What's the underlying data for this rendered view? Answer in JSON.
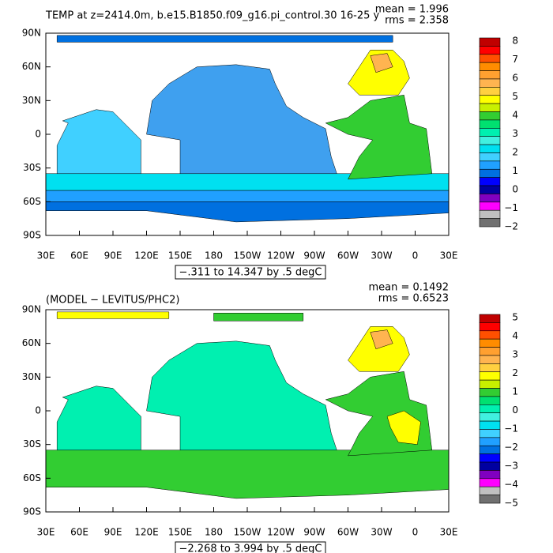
{
  "panels": [
    {
      "title": "TEMP at z=2414.0m, b.e15.B1850.f09_g16.pi_control.30 16-25 y",
      "mean": "mean = 1.996",
      "rms": "rms = 2.358",
      "range": "−.311 to 14.347 by .5 degC",
      "colorbar_labels": [
        "8",
        "7",
        "6",
        "5",
        "4",
        "3",
        "2",
        "1",
        "0",
        "−1",
        "−2"
      ]
    },
    {
      "title": "(MODEL − LEVITUS/PHC2)",
      "mean": "mean = 0.1492",
      "rms": "rms = 0.6523",
      "range": "−2.268 to 3.994 by .5 degC",
      "colorbar_labels": [
        "5",
        "4",
        "3",
        "2",
        "1",
        "0",
        "−1",
        "−2",
        "−3",
        "−4",
        "−5"
      ]
    }
  ],
  "x_labels": [
    "30E",
    "60E",
    "90E",
    "120E",
    "150E",
    "180",
    "150W",
    "120W",
    "90W",
    "60W",
    "30W",
    "0",
    "30E"
  ],
  "y_labels": [
    "90N",
    "60N",
    "30N",
    "0",
    "30S",
    "60S",
    "90S"
  ]
}
